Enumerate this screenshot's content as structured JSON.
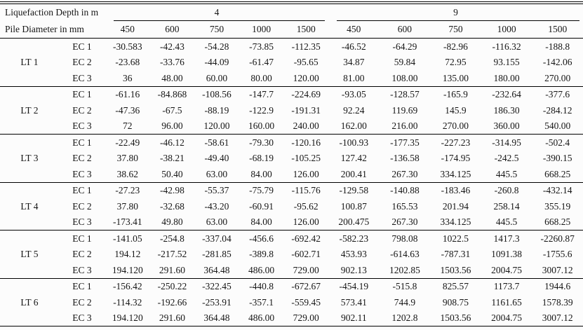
{
  "header": {
    "depth_label": "Liquefaction Depth in m",
    "diameter_label": "Pile Diameter in mm",
    "depth_groups": [
      {
        "label": "4",
        "diameters": [
          "450",
          "600",
          "750",
          "1000",
          "1500"
        ]
      },
      {
        "label": "9",
        "diameters": [
          "450",
          "600",
          "750",
          "1000",
          "1500"
        ]
      }
    ]
  },
  "body": {
    "groups": [
      {
        "label": "LT 1",
        "rows": [
          {
            "label": "EC 1",
            "values": [
              "-30.583",
              "-42.43",
              "-54.28",
              "-73.85",
              "-112.35",
              "-46.52",
              "-64.29",
              "-82.96",
              "-116.32",
              "-188.8"
            ]
          },
          {
            "label": "EC 2",
            "values": [
              "-23.68",
              "-33.76",
              "-44.09",
              "-61.47",
              "-95.65",
              "34.87",
              "59.84",
              "72.95",
              "93.155",
              "-142.06"
            ]
          },
          {
            "label": "EC 3",
            "values": [
              "36",
              "48.00",
              "60.00",
              "80.00",
              "120.00",
              "81.00",
              "108.00",
              "135.00",
              "180.00",
              "270.00"
            ]
          }
        ]
      },
      {
        "label": "LT 2",
        "rows": [
          {
            "label": "EC 1",
            "values": [
              "-61.16",
              "-84.868",
              "-108.56",
              "-147.7",
              "-224.69",
              "-93.05",
              "-128.57",
              "-165.9",
              "-232.64",
              "-377.6"
            ]
          },
          {
            "label": "EC 2",
            "values": [
              "-47.36",
              "-67.5",
              "-88.19",
              "-122.9",
              "-191.31",
              "92.24",
              "119.69",
              "145.9",
              "186.30",
              "-284.12"
            ]
          },
          {
            "label": "EC 3",
            "values": [
              "72",
              "96.00",
              "120.00",
              "160.00",
              "240.00",
              "162.00",
              "216.00",
              "270.00",
              "360.00",
              "540.00"
            ]
          }
        ]
      },
      {
        "label": "LT 3",
        "rows": [
          {
            "label": "EC 1",
            "values": [
              "-22.49",
              "-46.12",
              "-58.61",
              "-79.30",
              "-120.16",
              "-100.93",
              "-177.35",
              "-227.23",
              "-314.95",
              "-502.4"
            ]
          },
          {
            "label": "EC 2",
            "values": [
              "37.80",
              "-38.21",
              "-49.40",
              "-68.19",
              "-105.25",
              "127.42",
              "-136.58",
              "-174.95",
              "-242.5",
              "-390.15"
            ]
          },
          {
            "label": "EC 3",
            "values": [
              "38.62",
              "50.40",
              "63.00",
              "84.00",
              "126.00",
              "200.41",
              "267.30",
              "334.125",
              "445.5",
              "668.25"
            ]
          }
        ]
      },
      {
        "label": "LT 4",
        "rows": [
          {
            "label": "EC 1",
            "values": [
              "-27.23",
              "-42.98",
              "-55.37",
              "-75.79",
              "-115.76",
              "-129.58",
              "-140.88",
              "-183.46",
              "-260.8",
              "-432.14"
            ]
          },
          {
            "label": "EC 2",
            "values": [
              "37.80",
              "-32.68",
              "-43.20",
              "-60.91",
              "-95.62",
              "100.87",
              "165.53",
              "201.94",
              "258.14",
              "355.19"
            ]
          },
          {
            "label": "EC 3",
            "values": [
              "-173.41",
              "49.80",
              "63.00",
              "84.00",
              "126.00",
              "200.475",
              "267.30",
              "334.125",
              "445.5",
              "668.25"
            ]
          }
        ]
      },
      {
        "label": "LT 5",
        "rows": [
          {
            "label": "EC 1",
            "values": [
              "-141.05",
              "-254.8",
              "-337.04",
              "-456.6",
              "-692.42",
              "-582.23",
              "798.08",
              "1022.5",
              "1417.3",
              "-2260.87"
            ]
          },
          {
            "label": "EC 2",
            "values": [
              "194.12",
              "-217.52",
              "-281.85",
              "-389.8",
              "-602.71",
              "453.93",
              "-614.63",
              "-787.31",
              "1091.38",
              "-1755.6"
            ]
          },
          {
            "label": "EC 3",
            "values": [
              "194.120",
              "291.60",
              "364.48",
              "486.00",
              "729.00",
              "902.13",
              "1202.85",
              "1503.56",
              "2004.75",
              "3007.12"
            ]
          }
        ]
      },
      {
        "label": "LT 6",
        "rows": [
          {
            "label": "EC 1",
            "values": [
              "-156.42",
              "-250.22",
              "-322.45",
              "-440.8",
              "-672.67",
              "-454.19",
              "-515.8",
              "825.57",
              "1173.7",
              "1944.6"
            ]
          },
          {
            "label": "EC 2",
            "values": [
              "-114.32",
              "-192.66",
              "-253.91",
              "-357.1",
              "-559.45",
              "573.41",
              "744.9",
              "908.75",
              "1161.65",
              "1578.39"
            ]
          },
          {
            "label": "EC 3",
            "values": [
              "194.120",
              "291.60",
              "364.48",
              "486.00",
              "729.00",
              "902.11",
              "1202.8",
              "1503.56",
              "2004.75",
              "3007.12"
            ]
          }
        ]
      }
    ]
  },
  "colors": {
    "text": "#161616",
    "rule": "#000000",
    "background": "#fcfcfc"
  }
}
